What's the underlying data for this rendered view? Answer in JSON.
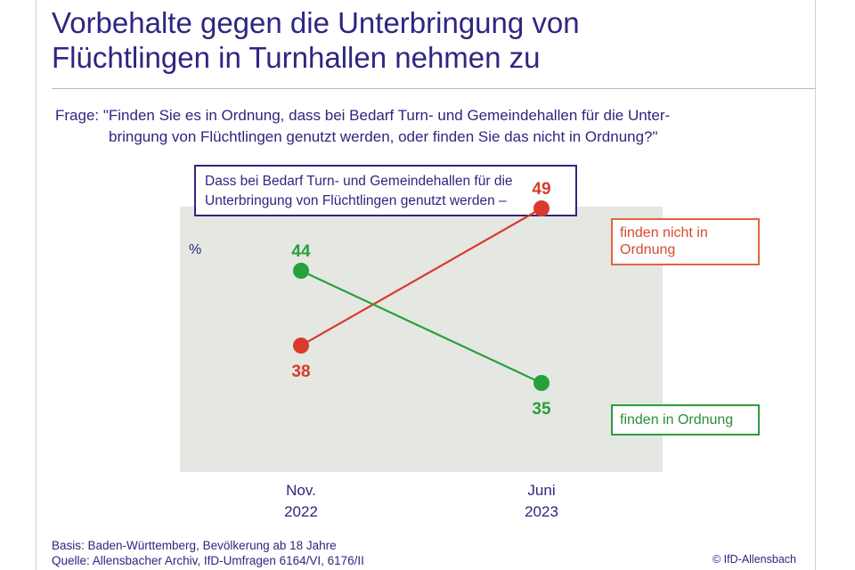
{
  "title_line1": "Vorbehalte gegen die Unterbringung von",
  "title_line2": "Flüchtlingen in Turnhallen nehmen zu",
  "question_line1": "Frage: \"Finden Sie es in Ordnung, dass bei Bedarf Turn- und Gemeindehallen für die Unter-",
  "question_line2": "bringung von Flüchtlingen genutzt werden, oder finden Sie das nicht in Ordnung?\"",
  "subject_line1": "Dass bei Bedarf Turn- und Gemeindehallen für die",
  "subject_line2": "Unterbringung von Flüchtlingen genutzt werden –",
  "footer_line1": "Basis: Baden-Württemberg, Bevölkerung ab 18 Jahre",
  "footer_line2": "Quelle: Allensbacher Archiv, IfD-Umfragen 6164/VI, 6176/II",
  "copyright": "© IfD-Allensbach",
  "chart_data": {
    "type": "line",
    "ylabel": "%",
    "ylim": [
      30,
      55
    ],
    "grid": false,
    "legend_placement": "right",
    "categories": [
      {
        "line1": "Nov.",
        "line2": "2022"
      },
      {
        "line1": "Juni",
        "line2": "2023"
      }
    ],
    "series": [
      {
        "name_line1": "finden nicht in",
        "name_line2": "Ordnung",
        "color": "#d93a2b",
        "values": [
          38,
          49
        ]
      },
      {
        "name": "finden in Ordnung",
        "color": "#27a03c",
        "values": [
          44,
          35
        ]
      }
    ]
  }
}
